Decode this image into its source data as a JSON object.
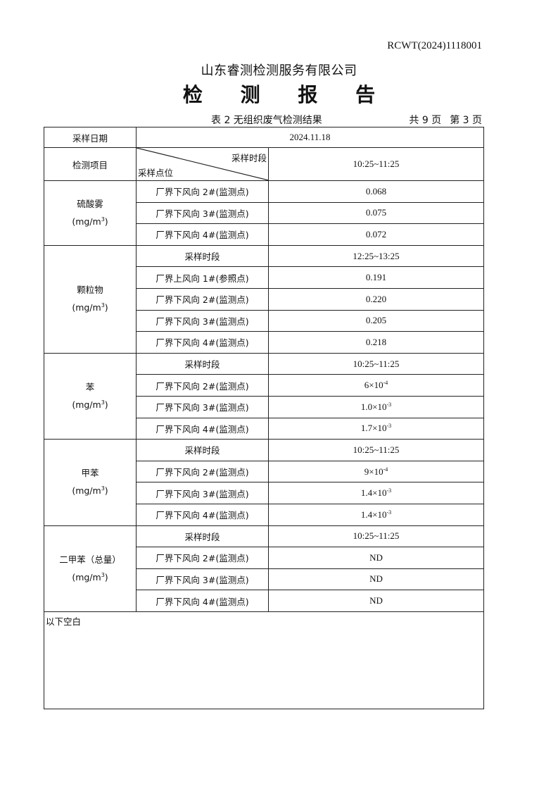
{
  "header": {
    "doc_number": "RCWT(2024)1118001",
    "company": "山东睿测检测服务有限公司",
    "title": "检 测 报 告",
    "table_caption": "表 2  无组织废气检测结果",
    "total_pages": "共 9 页",
    "current_page": "第 3 页"
  },
  "table": {
    "date_label": "采样日期",
    "date_value": "2024.11.18",
    "item_label": "检测项目",
    "period_label": "采样时段",
    "point_label": "采样点位",
    "first_period": "10:25~11:25",
    "groups": [
      {
        "name": "硫酸雾",
        "unit": "(mg/m",
        "unit_exp": "3",
        "unit_close": ")",
        "period": null,
        "rows": [
          {
            "point": "厂界下风向 2#(监测点)",
            "value": "0.068",
            "exp": ""
          },
          {
            "point": "厂界下风向 3#(监测点)",
            "value": "0.075",
            "exp": ""
          },
          {
            "point": "厂界下风向 4#(监测点)",
            "value": "0.072",
            "exp": ""
          }
        ]
      },
      {
        "name": "颗粒物",
        "unit": "(mg/m",
        "unit_exp": "3",
        "unit_close": ")",
        "period": "12:25~13:25",
        "rows": [
          {
            "point": "厂界上风向 1#(参照点)",
            "value": "0.191",
            "exp": ""
          },
          {
            "point": "厂界下风向 2#(监测点)",
            "value": "0.220",
            "exp": ""
          },
          {
            "point": "厂界下风向 3#(监测点)",
            "value": "0.205",
            "exp": ""
          },
          {
            "point": "厂界下风向 4#(监测点)",
            "value": "0.218",
            "exp": ""
          }
        ]
      },
      {
        "name": "苯",
        "unit": "(mg/m",
        "unit_exp": "3",
        "unit_close": ")",
        "period": "10:25~11:25",
        "rows": [
          {
            "point": "厂界下风向 2#(监测点)",
            "value": "6×10",
            "exp": "-4"
          },
          {
            "point": "厂界下风向 3#(监测点)",
            "value": "1.0×10",
            "exp": "-3"
          },
          {
            "point": "厂界下风向 4#(监测点)",
            "value": "1.7×10",
            "exp": "-3"
          }
        ]
      },
      {
        "name": "甲苯",
        "unit": "(mg/m",
        "unit_exp": "3",
        "unit_close": ")",
        "period": "10:25~11:25",
        "rows": [
          {
            "point": "厂界下风向 2#(监测点)",
            "value": "9×10",
            "exp": "-4"
          },
          {
            "point": "厂界下风向 3#(监测点)",
            "value": "1.4×10",
            "exp": "-3"
          },
          {
            "point": "厂界下风向 4#(监测点)",
            "value": "1.4×10",
            "exp": "-3"
          }
        ]
      },
      {
        "name": "二甲苯（总量）",
        "unit": "(mg/m",
        "unit_exp": "3",
        "unit_close": ")",
        "period": "10:25~11:25",
        "rows": [
          {
            "point": "厂界下风向 2#(监测点)",
            "value": "ND",
            "exp": ""
          },
          {
            "point": "厂界下风向 3#(监测点)",
            "value": "ND",
            "exp": ""
          },
          {
            "point": "厂界下风向 4#(监测点)",
            "value": "ND",
            "exp": ""
          }
        ]
      }
    ],
    "footer_note": "以下空白"
  }
}
